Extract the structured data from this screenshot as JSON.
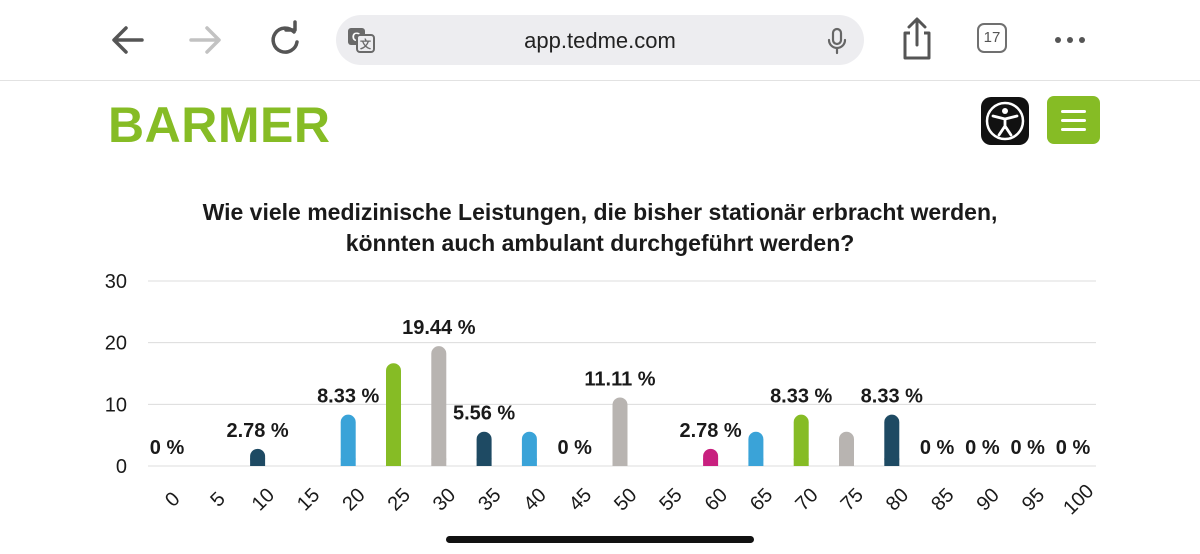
{
  "browser": {
    "url": "app.tedme.com",
    "tab_count": "17",
    "icons": [
      "back-arrow-icon",
      "forward-arrow-icon",
      "reload-icon",
      "translate-icon",
      "microphone-icon",
      "share-icon",
      "tabs-icon",
      "more-icon"
    ]
  },
  "header": {
    "logo": "BARMER",
    "accessibility_icon": "accessibility-person-icon",
    "menu_icon": "hamburger-menu-icon",
    "brand_color": "#86bc25"
  },
  "chart_data": {
    "type": "bar",
    "title": "Wie viele medizinische Leistungen, die bisher stationär erbracht werden, könnten auch ambulant durchgeführt werden?",
    "title_lines": [
      "Wie viele medizinische Leistungen, die bisher stationär erbracht werden,",
      "könnten auch ambulant durchgeführt werden?"
    ],
    "categories": [
      "0",
      "5",
      "10",
      "15",
      "20",
      "25",
      "30",
      "35",
      "40",
      "45",
      "50",
      "55",
      "60",
      "65",
      "70",
      "75",
      "80",
      "85",
      "90",
      "95",
      "100"
    ],
    "values": [
      0,
      0,
      2.78,
      0,
      8.33,
      16.67,
      19.44,
      5.56,
      5.56,
      0,
      11.11,
      0,
      2.78,
      5.56,
      8.33,
      5.56,
      8.33,
      0,
      0,
      0,
      0
    ],
    "colors": [
      "#1e4a63",
      "#1e4a63",
      "#1e4a63",
      "#1e4a63",
      "#3aa3d8",
      "#86bc25",
      "#b8b4b1",
      "#1e4a63",
      "#3aa3d8",
      "#86bc25",
      "#b8b4b1",
      "#1e4a63",
      "#c8207f",
      "#3aa3d8",
      "#86bc25",
      "#b8b4b1",
      "#1e4a63",
      "#3aa3d8",
      "#86bc25",
      "#b8b4b1",
      "#1e4a63"
    ],
    "data_labels": [
      {
        "category": "0",
        "text": "0 %"
      },
      {
        "category": "10",
        "text": "2.78 %"
      },
      {
        "category": "20",
        "text": "8.33 %"
      },
      {
        "category": "30",
        "text": "19.44 %"
      },
      {
        "category": "35",
        "text": "5.56 %"
      },
      {
        "category": "45",
        "text": "0 %"
      },
      {
        "category": "50",
        "text": "11.11 %"
      },
      {
        "category": "60",
        "text": "2.78 %"
      },
      {
        "category": "70",
        "text": "8.33 %"
      },
      {
        "category": "80",
        "text": "8.33 %"
      },
      {
        "category": "85",
        "text": "0 %"
      },
      {
        "category": "90",
        "text": "0 %"
      },
      {
        "category": "95",
        "text": "0 %"
      },
      {
        "category": "100",
        "text": "0 %"
      }
    ],
    "yticks": [
      "0",
      "10",
      "20",
      "30"
    ],
    "ylim": [
      0,
      30
    ],
    "grid": true,
    "xlabel": "",
    "ylabel": ""
  }
}
